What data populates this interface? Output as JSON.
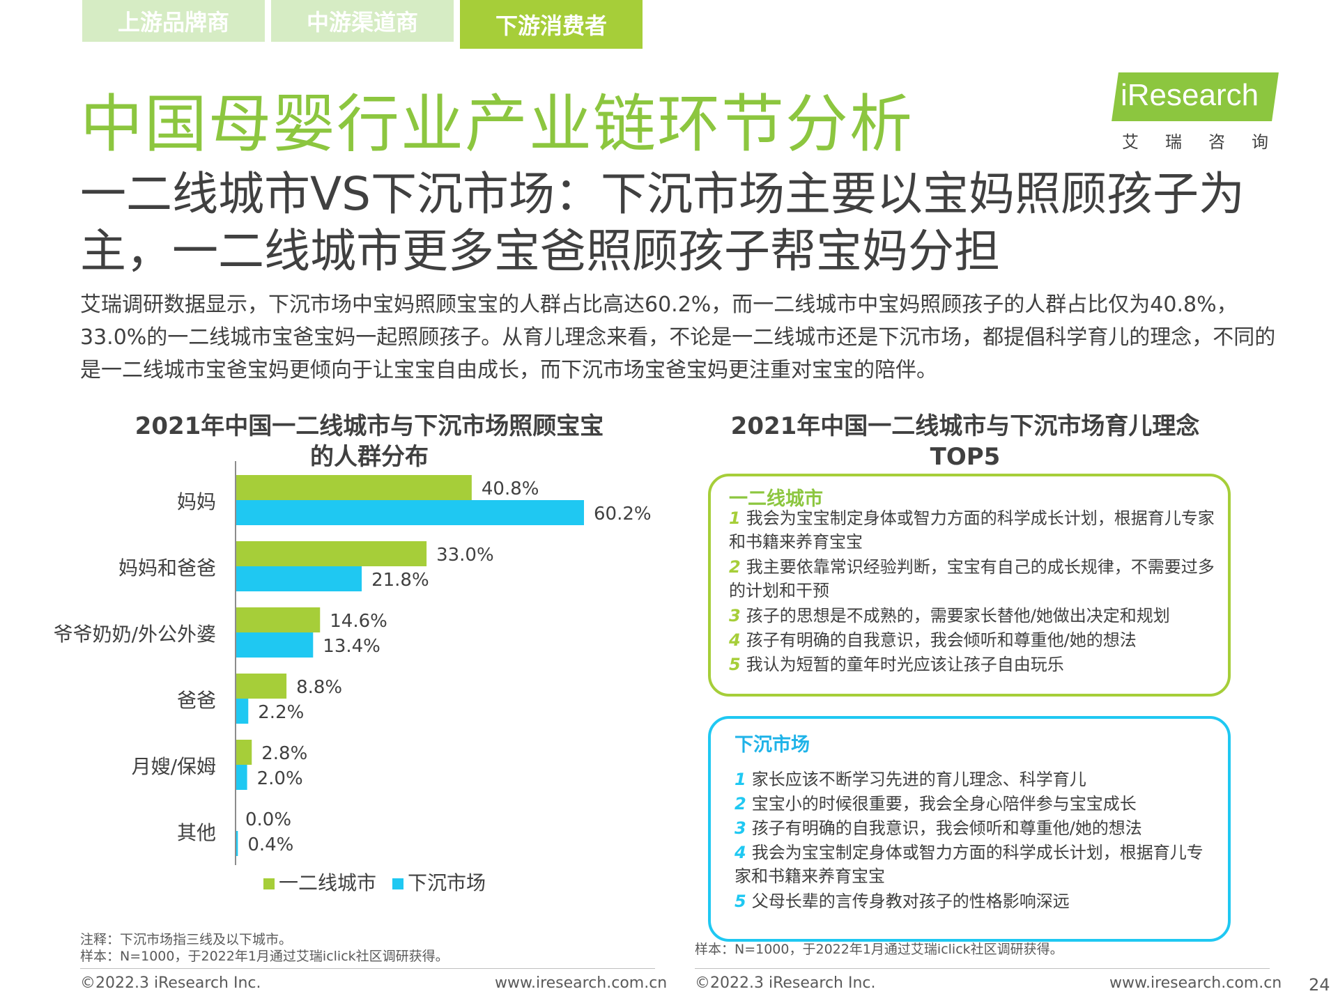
{
  "tabs": [
    {
      "label": "上游品牌商",
      "active": false
    },
    {
      "label": "中游渠道商",
      "active": false
    },
    {
      "label": "下游消费者",
      "active": true
    }
  ],
  "title": "中国母婴行业产业链环节分析",
  "subtitle": "一二线城市VS下沉市场：下沉市场主要以宝妈照顾孩子为主，一二线城市更多宝爸照顾孩子帮宝妈分担",
  "body_text": "艾瑞调研数据显示，下沉市场中宝妈照顾宝宝的人群占比高达60.2%，而一二线城市中宝妈照顾孩子的人群占比仅为40.8%，33.0%的一二线城市宝爸宝妈一起照顾孩子。从育儿理念来看，不论是一二线城市还是下沉市场，都提倡科学育儿的理念，不同的是一二线城市宝爸宝妈更倾向于让宝宝自由成长，而下沉市场宝爸宝妈更注重对宝宝的陪伴。",
  "logo": {
    "text": "iResearch",
    "sub": "艾瑞咨询"
  },
  "left_panel": {
    "title_line1": "2021年中国一二线城市与下沉市场照顾宝宝",
    "title_line2": "的人群分布"
  },
  "chart_data": {
    "type": "bar",
    "orientation": "horizontal",
    "categories": [
      "妈妈",
      "妈妈和爸爸",
      "爷爷奶奶/外公外婆",
      "爸爸",
      "月嫂/保姆",
      "其他"
    ],
    "series": [
      {
        "name": "一二线城市",
        "color": "#a6ce39",
        "values": [
          40.8,
          33.0,
          14.6,
          8.8,
          2.8,
          0.0
        ]
      },
      {
        "name": "下沉市场",
        "color": "#1fc8f2",
        "values": [
          60.2,
          21.8,
          13.4,
          2.2,
          2.0,
          0.4
        ]
      }
    ],
    "value_suffix": "%",
    "xlim": [
      0,
      60.2
    ],
    "legend_position": "bottom",
    "grid": false
  },
  "right_panel": {
    "title_line1": "2021年中国一二线城市与下沉市场育儿理念",
    "title_line2": "TOP5",
    "tier1": {
      "title": "一二线城市",
      "color": "#a6ce39",
      "items": [
        {
          "num": "1",
          "text": "我会为宝宝制定身体或智力方面的科学成长计划，根据育儿专家和书籍来养育宝宝"
        },
        {
          "num": "2",
          "text": "我主要依靠常识经验判断，宝宝有自己的成长规律，不需要过多的计划和干预"
        },
        {
          "num": "3",
          "text": "孩子的思想是不成熟的，需要家长替他/她做出决定和规划"
        },
        {
          "num": "4",
          "text": "孩子有明确的自我意识，我会倾听和尊重他/她的想法"
        },
        {
          "num": "5",
          "text": "我认为短暂的童年时光应该让孩子自由玩乐"
        }
      ]
    },
    "lower": {
      "title": "下沉市场",
      "color": "#1fc8f2",
      "items": [
        {
          "num": "1",
          "text": "家长应该不断学习先进的育儿理念、科学育儿"
        },
        {
          "num": "2",
          "text": "宝宝小的时候很重要，我会全身心陪伴参与宝宝成长"
        },
        {
          "num": "3",
          "text": "孩子有明确的自我意识，我会倾听和尊重他/她的想法"
        },
        {
          "num": "4",
          "text": "我会为宝宝制定身体或智力方面的科学成长计划，根据育儿专家和书籍来养育宝宝"
        },
        {
          "num": "5",
          "text": "父母长辈的言传身教对孩子的性格影响深远"
        }
      ]
    }
  },
  "notes": {
    "left_note1": "注释：下沉市场指三线及以下城市。",
    "left_note2": "样本：N=1000，于2022年1月通过艾瑞iclick社区调研获得。",
    "right_note": "样本：N=1000，于2022年1月通过艾瑞iclick社区调研获得。"
  },
  "footer": {
    "copyright": "©2022.3 iResearch Inc.",
    "url": "www.iresearch.com.cn",
    "page": "24"
  }
}
